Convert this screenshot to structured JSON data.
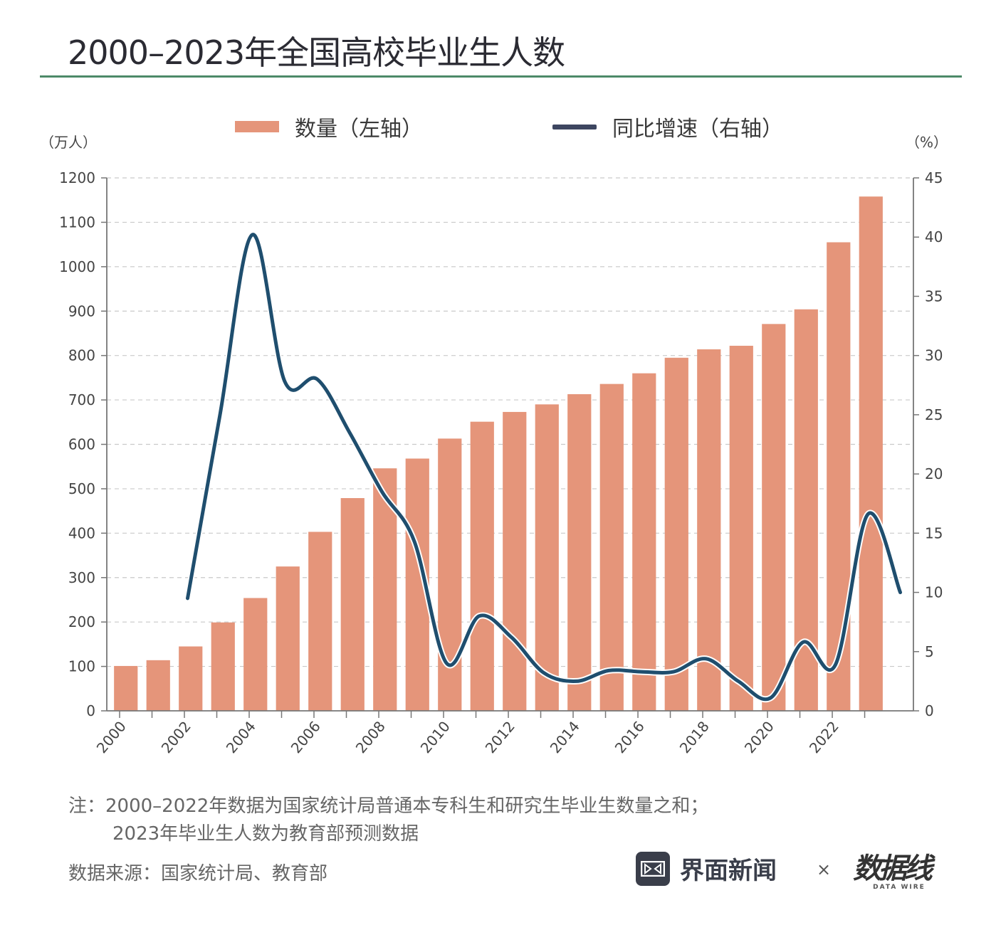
{
  "header": {
    "title": "2000–2023年全国高校毕业生人数"
  },
  "legend": {
    "bar_label": "数量（左轴）",
    "line_label": "同比增速（右轴）"
  },
  "axes": {
    "left_unit": "（万人）",
    "right_unit": "（%）"
  },
  "chart_data": {
    "type": "bar",
    "title": "2000–2023年全国高校毕业生人数",
    "xlabel": "",
    "ylabel": "万人",
    "y2label": "%",
    "ylim": [
      0,
      1200
    ],
    "y2lim": [
      0,
      45
    ],
    "yticks": [
      0,
      100,
      200,
      300,
      400,
      500,
      600,
      700,
      800,
      900,
      1000,
      1100,
      1200
    ],
    "y2ticks": [
      0,
      5,
      10,
      15,
      20,
      25,
      30,
      35,
      40,
      45
    ],
    "grid": true,
    "legend_position": "top-center",
    "categories": [
      "2000",
      "2001",
      "2002",
      "2003",
      "2004",
      "2005",
      "2006",
      "2007",
      "2008",
      "2009",
      "2010",
      "2011",
      "2012",
      "2013",
      "2014",
      "2015",
      "2016",
      "2017",
      "2018",
      "2019",
      "2020",
      "2021",
      "2022",
      "2023"
    ],
    "xtick_labels": [
      "2000",
      "2002",
      "2004",
      "2006",
      "2008",
      "2010",
      "2012",
      "2014",
      "2016",
      "2018",
      "2020",
      "2022"
    ],
    "series": [
      {
        "name": "数量（左轴）",
        "type": "bar",
        "axis": "left",
        "color": "#e5957a",
        "values": [
          101,
          114,
          145,
          199,
          254,
          325,
          403,
          479,
          546,
          568,
          613,
          651,
          673,
          690,
          713,
          736,
          760,
          795,
          814,
          822,
          871,
          904,
          1055,
          1158
        ]
      },
      {
        "name": "同比增速（右轴）",
        "type": "line",
        "axis": "right",
        "color": "#1f4e6e",
        "values": [
          null,
          9.5,
          25.0,
          40.2,
          27.8,
          28.0,
          23.5,
          18.5,
          14.3,
          4.0,
          8.0,
          6.2,
          3.2,
          2.5,
          3.4,
          3.3,
          3.3,
          4.4,
          2.5,
          1.1,
          5.8,
          3.9,
          16.6,
          10.0
        ]
      }
    ]
  },
  "footer": {
    "note_line1": "注：2000–2022年数据为国家统计局普通本专科生和研究生毕业生数量之和；",
    "note_line2": "2023年毕业生人数为教育部预测数据",
    "source": "数据来源：国家统计局、教育部",
    "brand_name": "界面新闻",
    "cross": "×",
    "partner_name": "数据线",
    "partner_sub": "DATA WIRE"
  }
}
